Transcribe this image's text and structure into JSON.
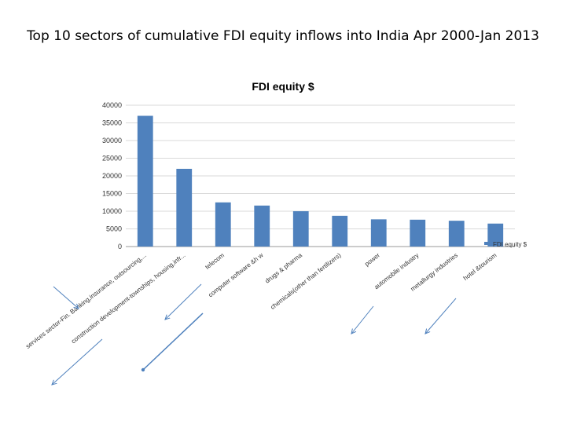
{
  "slide": {
    "title": "Top 10 sectors of cumulative FDI equity inflows into India Apr 2000-Jan 2013"
  },
  "chart_data": {
    "type": "bar",
    "title": "FDI equity $",
    "xlabel": "",
    "ylabel": "",
    "ylim": [
      0,
      40000
    ],
    "yticks": [
      0,
      5000,
      10000,
      15000,
      20000,
      25000,
      30000,
      35000,
      40000
    ],
    "grid": true,
    "legend": {
      "position": "bottom-right",
      "entries": [
        "FDI equity $"
      ]
    },
    "bar_color": "#4f81bd",
    "categories": [
      "services sector-Fin. Banking,insurance, outsourcing,...",
      "construction development-townships, housing,infr...",
      "telecom",
      "computer software &h w",
      "drugs & pharma",
      "chemicals(other than fertilizers)",
      "power",
      "automobile industry",
      "metallurgy industries",
      "hotel &tourism"
    ],
    "series": [
      {
        "name": "FDI equity $",
        "values": [
          37000,
          22000,
          12500,
          11600,
          10000,
          8700,
          7700,
          7600,
          7300,
          6500
        ]
      }
    ]
  },
  "annotations": {
    "arrow_color": "#4f81bd"
  }
}
